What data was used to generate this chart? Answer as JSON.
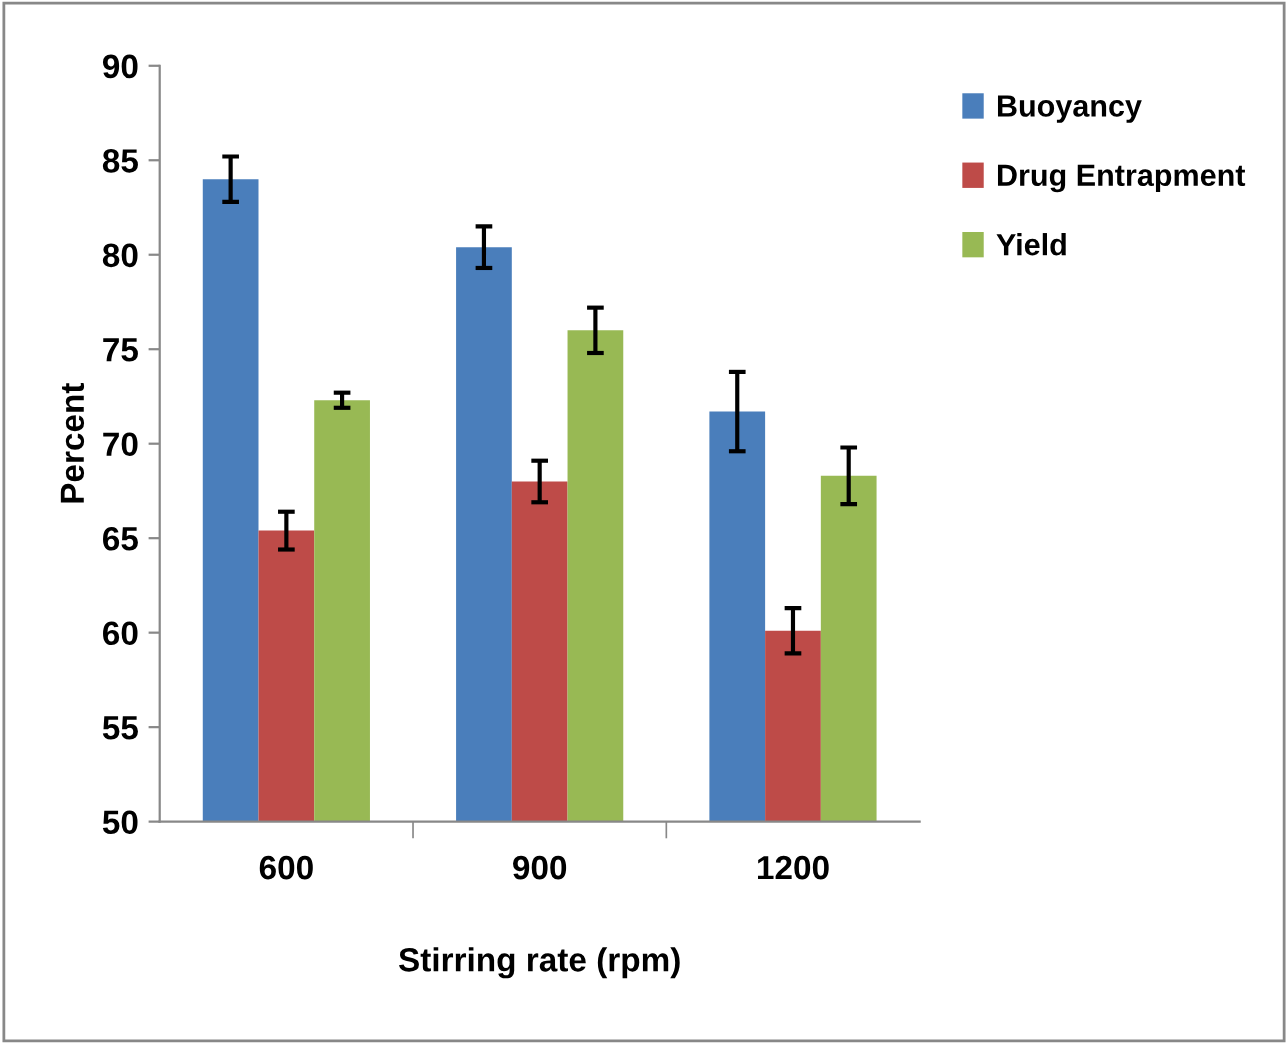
{
  "chart_data": {
    "type": "bar",
    "xlabel": "Stirring rate (rpm)",
    "ylabel": "Percent",
    "categories": [
      "600",
      "900",
      "1200"
    ],
    "series": [
      {
        "name": "Buoyancy",
        "color": "#4a7ebb",
        "values": [
          84.0,
          80.4,
          71.7
        ],
        "errors": [
          1.2,
          1.1,
          2.1
        ]
      },
      {
        "name": "Drug Entrapment",
        "color": "#be4b48",
        "values": [
          65.4,
          68.0,
          60.1
        ],
        "errors": [
          1.0,
          1.1,
          1.2
        ]
      },
      {
        "name": "Yield",
        "color": "#98b954",
        "values": [
          72.3,
          76.0,
          68.3
        ],
        "errors": [
          0.4,
          1.2,
          1.5
        ]
      }
    ],
    "ylim": [
      50,
      90
    ],
    "yticks": [
      50,
      55,
      60,
      65,
      70,
      75,
      80,
      85,
      90
    ],
    "grid": false,
    "legend": "top right"
  }
}
